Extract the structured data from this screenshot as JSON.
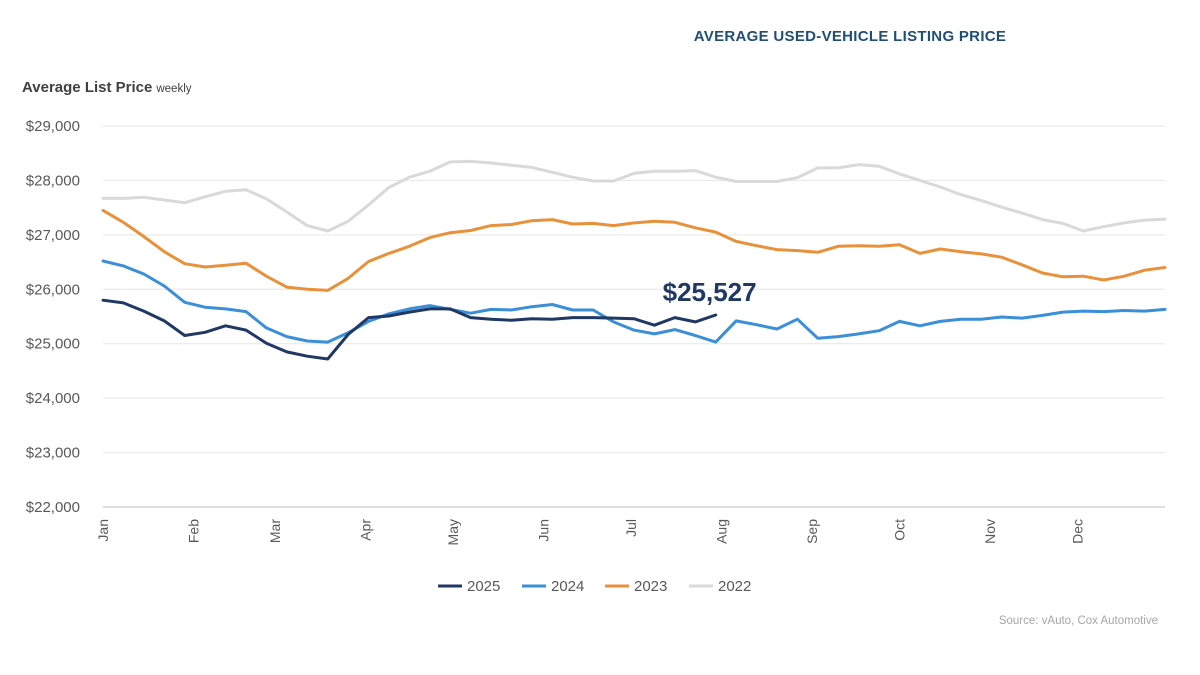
{
  "header": {
    "title": "AVERAGE USED-VEHICLE LISTING PRICE"
  },
  "footer": {
    "source": "Source: vAuto, Cox Automotive"
  },
  "chart_data": {
    "type": "line",
    "title": "AVERAGE USED-VEHICLE LISTING PRICE",
    "ylabel": "Average List Price",
    "ylabel_sub": "weekly",
    "ylim": [
      22000,
      29000
    ],
    "yticks": [
      22000,
      23000,
      24000,
      25000,
      26000,
      27000,
      28000,
      29000
    ],
    "ytick_labels": [
      "$22,000",
      "$23,000",
      "$24,000",
      "$25,000",
      "$26,000",
      "$27,000",
      "$28,000",
      "$29,000"
    ],
    "xlim": [
      1,
      53
    ],
    "x_ticks": [
      {
        "label": "Jan",
        "week": 1
      },
      {
        "label": "Feb",
        "week": 5.43
      },
      {
        "label": "Mar",
        "week": 9.43
      },
      {
        "label": "Apr",
        "week": 13.86
      },
      {
        "label": "May",
        "week": 18.14
      },
      {
        "label": "Jun",
        "week": 22.57
      },
      {
        "label": "Jul",
        "week": 26.86
      },
      {
        "label": "Aug",
        "week": 31.29
      },
      {
        "label": "Sep",
        "week": 35.71
      },
      {
        "label": "Oct",
        "week": 40
      },
      {
        "label": "Nov",
        "week": 44.43
      },
      {
        "label": "Dec",
        "week": 48.71
      }
    ],
    "x_unit": "week of year",
    "grid": "horizontal",
    "legend_position": "bottom",
    "annotation": {
      "text": "$25,527",
      "series": "2025",
      "week": 31.29,
      "value": 25527
    },
    "series": [
      {
        "name": "2025",
        "color": "#1f3864",
        "x": [
          1,
          2,
          3,
          4,
          5,
          6,
          7,
          8,
          9,
          10,
          11,
          12,
          13,
          14,
          15,
          16,
          17,
          18,
          19,
          20,
          21,
          22,
          23,
          24,
          25,
          26,
          27,
          28,
          29,
          30,
          31
        ],
        "values": [
          25800,
          25750,
          25600,
          25420,
          25150,
          25210,
          25330,
          25250,
          25010,
          24850,
          24770,
          24720,
          25170,
          25480,
          25510,
          25580,
          25640,
          25640,
          25480,
          25450,
          25430,
          25460,
          25450,
          25480,
          25480,
          25470,
          25460,
          25340,
          25480,
          25400,
          25527
        ]
      },
      {
        "name": "2024",
        "color": "#3a8fd8",
        "x": [
          1,
          2,
          3,
          4,
          5,
          6,
          7,
          8,
          9,
          10,
          11,
          12,
          13,
          14,
          15,
          16,
          17,
          18,
          19,
          20,
          21,
          22,
          23,
          24,
          25,
          26,
          27,
          28,
          29,
          30,
          31,
          32,
          33,
          34,
          35,
          36,
          37,
          38,
          39,
          40,
          41,
          42,
          43,
          44,
          45,
          46,
          47,
          48,
          49,
          50,
          51,
          52,
          53
        ],
        "values": [
          26520,
          26430,
          26280,
          26060,
          25760,
          25670,
          25640,
          25590,
          25290,
          25130,
          25050,
          25030,
          25200,
          25410,
          25550,
          25640,
          25700,
          25630,
          25560,
          25630,
          25620,
          25680,
          25720,
          25620,
          25620,
          25400,
          25250,
          25180,
          25260,
          25150,
          25030,
          25420,
          25350,
          25270,
          25450,
          25100,
          25130,
          25180,
          25240,
          25410,
          25330,
          25410,
          25450,
          25450,
          25490,
          25470,
          25520,
          25580,
          25600,
          25590,
          25610,
          25600,
          25630
        ]
      },
      {
        "name": "2023",
        "color": "#e8913a",
        "x": [
          1,
          2,
          3,
          4,
          5,
          6,
          7,
          8,
          9,
          10,
          11,
          12,
          13,
          14,
          15,
          16,
          17,
          18,
          19,
          20,
          21,
          22,
          23,
          24,
          25,
          26,
          27,
          28,
          29,
          30,
          31,
          32,
          33,
          34,
          35,
          36,
          37,
          38,
          39,
          40,
          41,
          42,
          43,
          44,
          45,
          46,
          47,
          48,
          49,
          50,
          51,
          52,
          53
        ],
        "values": [
          27450,
          27230,
          26970,
          26690,
          26470,
          26410,
          26440,
          26480,
          26240,
          26040,
          26000,
          25980,
          26200,
          26510,
          26660,
          26790,
          26950,
          27040,
          27080,
          27170,
          27190,
          27260,
          27280,
          27200,
          27210,
          27170,
          27220,
          27250,
          27230,
          27130,
          27050,
          26880,
          26800,
          26730,
          26710,
          26680,
          26790,
          26800,
          26790,
          26820,
          26660,
          26740,
          26690,
          26650,
          26590,
          26450,
          26300,
          26230,
          26240,
          26170,
          26240,
          26350,
          26400
        ]
      },
      {
        "name": "2022",
        "color": "#d9d9d9",
        "x": [
          1,
          2,
          3,
          4,
          5,
          6,
          7,
          8,
          9,
          10,
          11,
          12,
          13,
          14,
          15,
          16,
          17,
          18,
          19,
          20,
          21,
          22,
          23,
          24,
          25,
          26,
          27,
          28,
          29,
          30,
          31,
          32,
          33,
          34,
          35,
          36,
          37,
          38,
          39,
          40,
          41,
          42,
          43,
          44,
          45,
          46,
          47,
          48,
          49,
          50,
          51,
          52,
          53
        ],
        "values": [
          27670,
          27670,
          27690,
          27640,
          27590,
          27700,
          27800,
          27830,
          27660,
          27420,
          27170,
          27070,
          27250,
          27550,
          27870,
          28060,
          28170,
          28340,
          28350,
          28320,
          28280,
          28240,
          28150,
          28060,
          27990,
          27990,
          28130,
          28170,
          28170,
          28180,
          28060,
          27980,
          27980,
          27980,
          28050,
          28230,
          28230,
          28290,
          28260,
          28120,
          28000,
          27880,
          27740,
          27630,
          27510,
          27400,
          27280,
          27210,
          27070,
          27150,
          27220,
          27270,
          27290
        ]
      }
    ]
  }
}
